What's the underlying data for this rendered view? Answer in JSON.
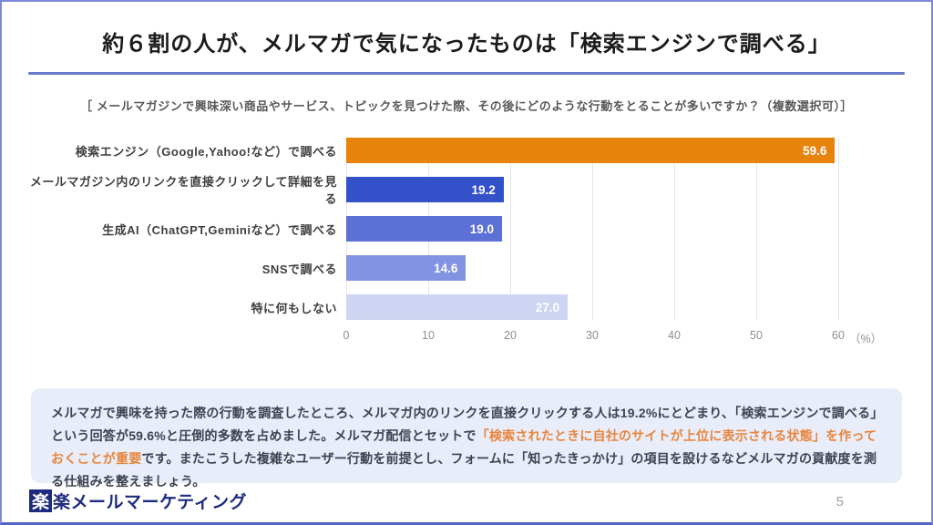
{
  "header": {
    "title": "約６割の人が、メルマガで気になったものは「検索エンジンで調べる」"
  },
  "chart": {
    "question": "［ メールマガジンで興味深い商品やサービス、トピックを見つけた際、その後にどのような行動をとることが多いですか？（複数選択可）］"
  },
  "chart_data": {
    "type": "bar",
    "orientation": "horizontal",
    "categories": [
      "検索エンジン（Google,Yahoo!など）で調べる",
      "メールマガジン内のリンクを直接クリックして詳細を見る",
      "生成AI（ChatGPT,Geminiなど）で調べる",
      "SNSで調べる",
      "特に何もしない"
    ],
    "values": [
      59.6,
      19.2,
      19.0,
      14.6,
      27.0
    ],
    "value_labels": [
      "59.6",
      "19.2",
      "19.0",
      "14.6",
      "27.0"
    ],
    "bar_colors": [
      "#E8830C",
      "#3351C9",
      "#5C70D6",
      "#8193E2",
      "#CDD5F2"
    ],
    "value_label_color": "#FFFFFF",
    "xlim": [
      0,
      60
    ],
    "xticks": [
      "0",
      "10",
      "20",
      "30",
      "40",
      "50",
      "60"
    ],
    "x_unit": "（%）",
    "grid": true,
    "gridline_color": "#E4E4E4"
  },
  "summary": {
    "part1": "メルマガで興味を持った際の行動を調査したところ、メルマガ内のリンクを直接クリックする人は19.2%にとどまり、「検索エンジンで調べる」という回答が59.6%と圧倒的多数を占めました。メルマガ配信とセットで",
    "highlight": "「検索されたときに自社のサイトが上位に表示される状態」を作っておくことが重要",
    "part2": "です。またこうした複雑なユーザー行動を前提とし、フォームに「知ったきっかけ」の項目を設けるなどメルマガの貢献度を測る仕組みを整えましょう。",
    "highlight_color": "#E8853D"
  },
  "footer": {
    "logo_mark": "楽",
    "logo_text": "楽メールマーケティング",
    "page_number": "5"
  },
  "colors": {
    "slide_border": "#7E88DA",
    "title_underline": "#6A78CC",
    "summary_bg": "#E9EDF9",
    "logo_navy": "#1E2B7D"
  }
}
